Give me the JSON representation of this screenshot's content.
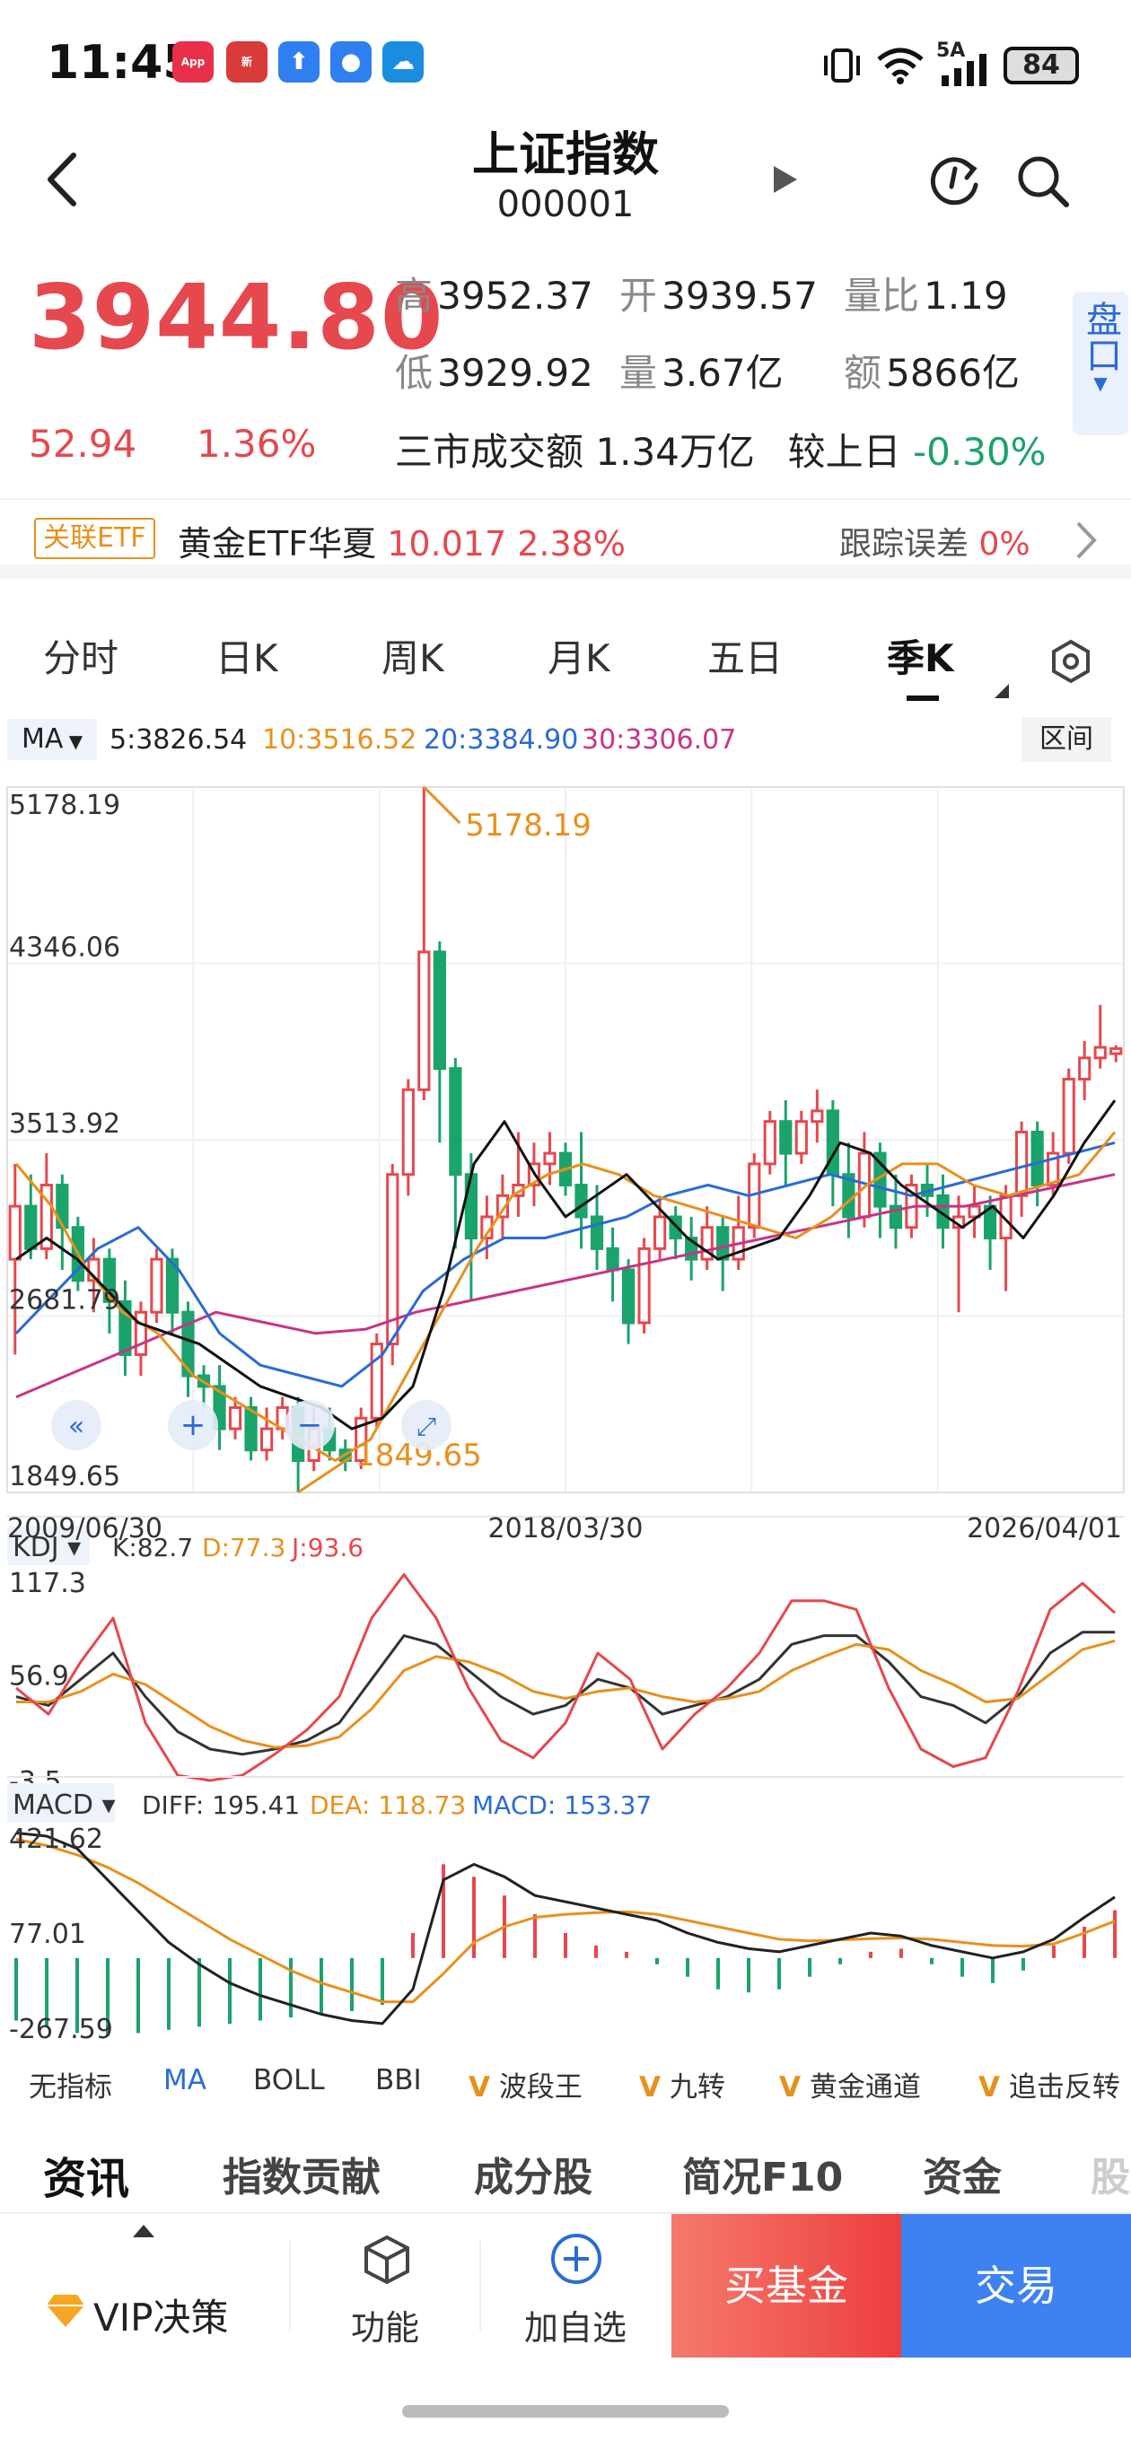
{
  "status_bar": {
    "time": "11:45",
    "battery": "84",
    "network": "5A",
    "apps": [
      {
        "name": "AppGallery",
        "color": "#e8304a"
      },
      {
        "name": "news",
        "color": "#d93b3b"
      },
      {
        "name": "upload",
        "color": "#2f7ff0"
      },
      {
        "name": "message",
        "color": "#2f7ff0"
      },
      {
        "name": "cloud",
        "color": "#1b8de0"
      }
    ]
  },
  "header": {
    "title": "上证指数",
    "code": "000001"
  },
  "quote": {
    "price": "3944.80",
    "change": "52.94",
    "change_pct": "1.36%",
    "high_label": "高",
    "high": "3952.37",
    "open_label": "开",
    "open": "3939.57",
    "ratio_label": "量比",
    "ratio": "1.19",
    "low_label": "低",
    "low": "3929.92",
    "volume_label": "量",
    "volume": "3.67亿",
    "amount_label": "额",
    "amount": "5866亿",
    "market_turnover_label": "三市成交额",
    "market_turnover": "1.34万亿",
    "vs_prev_label": "较上日",
    "vs_prev": "-0.30%",
    "pankou_label": "盘口"
  },
  "etf": {
    "tag": "关联ETF",
    "name": "黄金ETF华夏",
    "price": "10.017",
    "pct": "2.38%",
    "tracking_label": "跟踪误差",
    "tracking": "0%"
  },
  "chart_tabs": [
    "分时",
    "日K",
    "周K",
    "月K",
    "五日",
    "季K"
  ],
  "active_tab": 5,
  "ma_legend": {
    "label": "MA",
    "ma5": "5:3826.54",
    "ma10": "10:3516.52",
    "ma20": "20:3384.90",
    "ma30": "30:3306.07",
    "range_button": "区间"
  },
  "chart_data": [
    {
      "type": "candlestick",
      "y_ticks": [
        "5178.19",
        "4346.06",
        "3513.92",
        "2681.79",
        "1849.65"
      ],
      "ylim": [
        1849.65,
        5178.19
      ],
      "x_labels": [
        "2009/06/30",
        "2018/03/30",
        "2026/04/01"
      ],
      "annotations": {
        "max": "5178.19",
        "min": "1849.65"
      },
      "series_colors": {
        "ma5": "#111111",
        "ma10": "#e8901c",
        "ma20": "#2a6bd6",
        "ma30": "#c8338a"
      },
      "candles": [
        [
          2950,
          3200,
          2500,
          3400
        ],
        [
          3200,
          3000,
          2950,
          3350
        ],
        [
          3000,
          3300,
          2950,
          3450
        ],
        [
          3300,
          3100,
          2900,
          3350
        ],
        [
          3100,
          2850,
          2800,
          3150
        ],
        [
          2850,
          2950,
          2700,
          3050
        ],
        [
          2950,
          2750,
          2600,
          3000
        ],
        [
          2750,
          2500,
          2400,
          2850
        ],
        [
          2500,
          2700,
          2400,
          2750
        ],
        [
          2700,
          2950,
          2650,
          3000
        ],
        [
          2950,
          2700,
          2600,
          3000
        ],
        [
          2700,
          2400,
          2300,
          2750
        ],
        [
          2400,
          2350,
          2250,
          2450
        ],
        [
          2350,
          2150,
          2050,
          2450
        ],
        [
          2150,
          2250,
          2100,
          2300
        ],
        [
          2250,
          2050,
          2000,
          2300
        ],
        [
          2050,
          2150,
          2000,
          2250
        ],
        [
          2150,
          2250,
          2100,
          2300
        ],
        [
          2250,
          2000,
          1850,
          2300
        ],
        [
          2000,
          2150,
          1950,
          2250
        ],
        [
          2150,
          2050,
          2000,
          2250
        ],
        [
          2050,
          2000,
          1950,
          2100
        ],
        [
          2000,
          2200,
          1960,
          2250
        ],
        [
          2200,
          2550,
          2150,
          2600
        ],
        [
          2550,
          3350,
          2450,
          3400
        ],
        [
          3350,
          3750,
          3250,
          3800
        ],
        [
          3750,
          4400,
          3700,
          5178
        ],
        [
          4400,
          3850,
          3500,
          4450
        ],
        [
          3850,
          3350,
          3000,
          3900
        ],
        [
          3350,
          3050,
          2750,
          3450
        ],
        [
          3050,
          3150,
          2950,
          3250
        ],
        [
          3150,
          3250,
          3050,
          3350
        ],
        [
          3250,
          3300,
          3150,
          3550
        ],
        [
          3300,
          3400,
          3200,
          3500
        ],
        [
          3400,
          3450,
          3300,
          3550
        ],
        [
          3450,
          3300,
          3250,
          3500
        ],
        [
          3300,
          3150,
          3000,
          3550
        ],
        [
          3150,
          3000,
          2900,
          3300
        ],
        [
          3000,
          2900,
          2750,
          3100
        ],
        [
          2900,
          2650,
          2550,
          2950
        ],
        [
          2650,
          3000,
          2600,
          3050
        ],
        [
          3000,
          3150,
          2950,
          3250
        ],
        [
          3150,
          3050,
          2950,
          3200
        ],
        [
          3050,
          2950,
          2850,
          3150
        ],
        [
          2950,
          3100,
          2900,
          3200
        ],
        [
          3100,
          2950,
          2800,
          3150
        ],
        [
          2950,
          3100,
          2900,
          3250
        ],
        [
          3100,
          3400,
          3050,
          3450
        ],
        [
          3400,
          3600,
          3350,
          3650
        ],
        [
          3600,
          3450,
          3300,
          3700
        ],
        [
          3450,
          3600,
          3400,
          3650
        ],
        [
          3600,
          3650,
          3500,
          3750
        ],
        [
          3650,
          3350,
          3200,
          3700
        ],
        [
          3350,
          3150,
          3050,
          3500
        ],
        [
          3150,
          3450,
          3100,
          3550
        ],
        [
          3450,
          3200,
          3050,
          3500
        ],
        [
          3200,
          3100,
          3000,
          3350
        ],
        [
          3100,
          3300,
          3050,
          3350
        ],
        [
          3300,
          3250,
          3150,
          3400
        ],
        [
          3250,
          3100,
          3000,
          3350
        ],
        [
          3100,
          3150,
          2700,
          3250
        ],
        [
          3150,
          3200,
          3050,
          3300
        ],
        [
          3200,
          3050,
          2900,
          3250
        ],
        [
          3050,
          3250,
          2800,
          3300
        ],
        [
          3250,
          3550,
          3150,
          3600
        ],
        [
          3550,
          3300,
          3200,
          3600
        ],
        [
          3300,
          3450,
          3250,
          3550
        ],
        [
          3450,
          3800,
          3400,
          3850
        ],
        [
          3800,
          3900,
          3700,
          3980
        ],
        [
          3900,
          3950,
          3850,
          4150
        ],
        [
          3920,
          3944,
          3880,
          3960
        ]
      ],
      "ma5": [
        2950,
        3050,
        2950,
        2800,
        2650,
        2600,
        2550,
        2450,
        2350,
        2300,
        2250,
        2150,
        2200,
        2350,
        2800,
        3400,
        3600,
        3350,
        3150,
        3250,
        3350,
        3200,
        3050,
        2950,
        3000,
        3050,
        3250,
        3500,
        3450,
        3300,
        3200,
        3100,
        3200,
        3050,
        3250,
        3500,
        3700
      ],
      "ma10": [
        3400,
        3200,
        2900,
        2700,
        2600,
        2400,
        2300,
        2200,
        2100,
        2000,
        2100,
        2400,
        2700,
        3000,
        3250,
        3350,
        3400,
        3350,
        3250,
        3200,
        3150,
        3100,
        3050,
        3150,
        3300,
        3400,
        3400,
        3300,
        3250,
        3300,
        3350,
        3550
      ],
      "ma20": [
        2600,
        2800,
        3000,
        3100,
        2900,
        2600,
        2450,
        2400,
        2350,
        2500,
        2800,
        2950,
        3050,
        3050,
        3100,
        3150,
        3250,
        3300,
        3250,
        3300,
        3350,
        3300,
        3250,
        3300,
        3350,
        3400,
        3450,
        3500
      ],
      "ma30": [
        2300,
        2400,
        2500,
        2600,
        2700,
        2650,
        2600,
        2620,
        2700,
        2750,
        2800,
        2850,
        2900,
        2950,
        3000,
        3050,
        3100,
        3150,
        3200,
        3200,
        3250,
        3300,
        3350
      ]
    },
    {
      "type": "line",
      "name_label": "KDJ",
      "legend": {
        "k": "K:82.7",
        "d": "D:77.3",
        "j": "J:93.6"
      },
      "y_ticks": [
        "117.3",
        "56.9",
        "-3.5"
      ],
      "ylim": [
        -3.5,
        117.3
      ],
      "series": [
        {
          "name": "K",
          "color": "#333333",
          "values": [
            45,
            40,
            55,
            70,
            45,
            25,
            15,
            12,
            15,
            20,
            30,
            55,
            80,
            75,
            60,
            45,
            35,
            40,
            55,
            50,
            35,
            40,
            45,
            55,
            75,
            80,
            80,
            65,
            45,
            40,
            30,
            45,
            70,
            82,
            82
          ]
        },
        {
          "name": "D",
          "color": "#e8901c",
          "values": [
            42,
            42,
            48,
            58,
            52,
            40,
            28,
            20,
            16,
            17,
            22,
            38,
            60,
            68,
            65,
            58,
            48,
            44,
            48,
            50,
            45,
            42,
            44,
            48,
            60,
            68,
            75,
            72,
            60,
            52,
            42,
            44,
            58,
            72,
            77
          ]
        },
        {
          "name": "J",
          "color": "#e5484d",
          "values": [
            50,
            35,
            65,
            90,
            30,
            0,
            -3,
            0,
            12,
            26,
            45,
            90,
            115,
            90,
            50,
            20,
            10,
            30,
            70,
            55,
            15,
            35,
            50,
            70,
            100,
            100,
            95,
            50,
            15,
            5,
            10,
            48,
            95,
            110,
            93
          ]
        }
      ]
    },
    {
      "type": "bar+line",
      "name_label": "MACD",
      "legend": {
        "diff": "DIFF: 195.41",
        "dea": "DEA: 118.73",
        "macd": "MACD: 153.37"
      },
      "y_ticks": [
        "421.62",
        "77.01",
        "-267.59"
      ],
      "ylim": [
        -267.59,
        421.62
      ],
      "diff": [
        400,
        390,
        350,
        250,
        150,
        50,
        -20,
        -80,
        -120,
        -150,
        -180,
        -200,
        -210,
        -100,
        250,
        300,
        260,
        200,
        180,
        160,
        140,
        120,
        80,
        50,
        30,
        20,
        40,
        60,
        80,
        70,
        40,
        20,
        0,
        20,
        60,
        130,
        195
      ],
      "dea": [
        380,
        360,
        330,
        290,
        240,
        180,
        120,
        60,
        10,
        -40,
        -80,
        -110,
        -140,
        -140,
        -50,
        50,
        100,
        130,
        140,
        145,
        148,
        140,
        120,
        100,
        80,
        60,
        55,
        58,
        62,
        64,
        60,
        50,
        40,
        38,
        45,
        80,
        118
      ],
      "macd": [
        -200,
        -220,
        -240,
        -250,
        -240,
        -230,
        -220,
        -210,
        -200,
        -190,
        -180,
        -170,
        -150,
        80,
        300,
        260,
        200,
        140,
        80,
        40,
        20,
        -20,
        -60,
        -100,
        -110,
        -100,
        -60,
        -20,
        20,
        30,
        -20,
        -60,
        -80,
        -40,
        40,
        100,
        153
      ]
    }
  ],
  "indicators": [
    "无指标",
    "MA",
    "BOLL",
    "BBI",
    "波段王",
    "九转",
    "黄金通道",
    "追击反转"
  ],
  "active_indicator": 1,
  "section_tabs": [
    "资讯",
    "指数贡献",
    "成分股",
    "简况F10",
    "资金",
    "股"
  ],
  "bottom_bar": {
    "vip": "VIP决策",
    "function": "功能",
    "watchlist": "加自选",
    "buy_fund": "买基金",
    "trade": "交易"
  }
}
